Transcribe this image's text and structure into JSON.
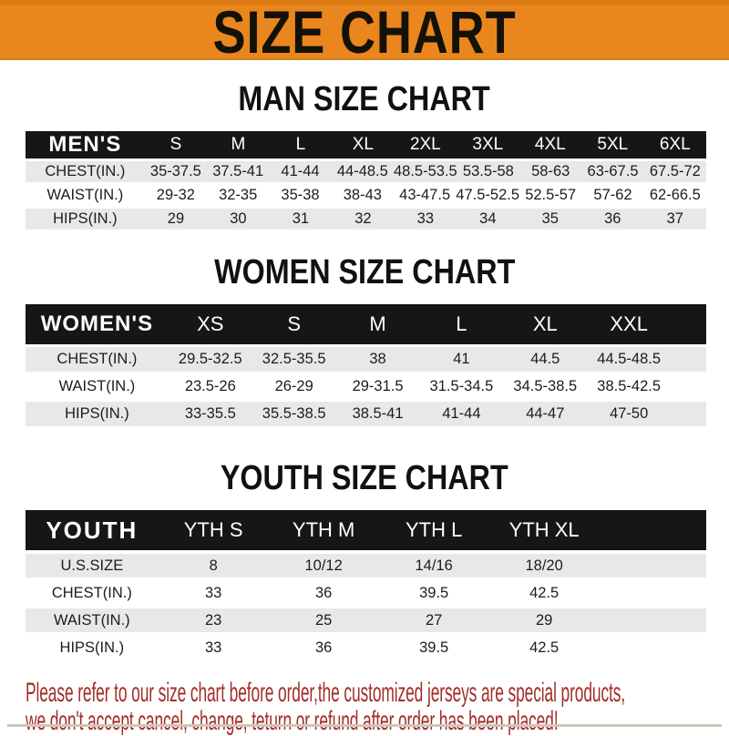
{
  "banner": {
    "title": "SIZE CHART"
  },
  "colors": {
    "banner_orange": "#E9871E",
    "banner_orange_dark": "#DB7B11",
    "bar_black": "#161616",
    "row_gray": "#E8E8E8",
    "footer_red": "#A22E28"
  },
  "tables": {
    "men": {
      "title": "MAN SIZE CHART",
      "header": [
        "MEN'S",
        "S",
        "M",
        "L",
        "XL",
        "2XL",
        "3XL",
        "4XL",
        "5XL",
        "6XL"
      ],
      "rows": [
        [
          "CHEST(IN.)",
          "35-37.5",
          "37.5-41",
          "41-44",
          "44-48.5",
          "48.5-53.5",
          "53.5-58",
          "58-63",
          "63-67.5",
          "67.5-72"
        ],
        [
          "WAIST(IN.)",
          "29-32",
          "32-35",
          "35-38",
          "38-43",
          "43-47.5",
          "47.5-52.5",
          "52.5-57",
          "57-62",
          "62-66.5"
        ],
        [
          "HIPS(IN.)",
          "29",
          "30",
          "31",
          "32",
          "33",
          "34",
          "35",
          "36",
          "37"
        ]
      ]
    },
    "women": {
      "title": "WOMEN SIZE CHART",
      "header": [
        "WOMEN'S",
        "XS",
        "S",
        "M",
        "L",
        "XL",
        "XXL"
      ],
      "rows": [
        [
          "CHEST(IN.)",
          "29.5-32.5",
          "32.5-35.5",
          "38",
          "41",
          "44.5",
          "44.5-48.5"
        ],
        [
          "WAIST(IN.)",
          "23.5-26",
          "26-29",
          "29-31.5",
          "31.5-34.5",
          "34.5-38.5",
          "38.5-42.5"
        ],
        [
          "HIPS(IN.)",
          "33-35.5",
          "35.5-38.5",
          "38.5-41",
          "41-44",
          "44-47",
          "47-50"
        ]
      ]
    },
    "youth": {
      "title": "YOUTH SIZE CHART",
      "header": [
        "YOUTH",
        "YTH S",
        "YTH M",
        "YTH L",
        "YTH XL"
      ],
      "rows": [
        [
          "U.S.SIZE",
          "8",
          "10/12",
          "14/16",
          "18/20"
        ],
        [
          "CHEST(IN.)",
          "33",
          "36",
          "39.5",
          "42.5"
        ],
        [
          "WAIST(IN.)",
          "23",
          "25",
          "27",
          "29"
        ],
        [
          "HIPS(IN.)",
          "33",
          "36",
          "39.5",
          "42.5"
        ]
      ]
    }
  },
  "footer": {
    "line1": "Please refer to our size chart before order,the customized jerseys are special products,",
    "line2": "we don't accept cancel, change, teturn or refund after order has been placed!"
  }
}
